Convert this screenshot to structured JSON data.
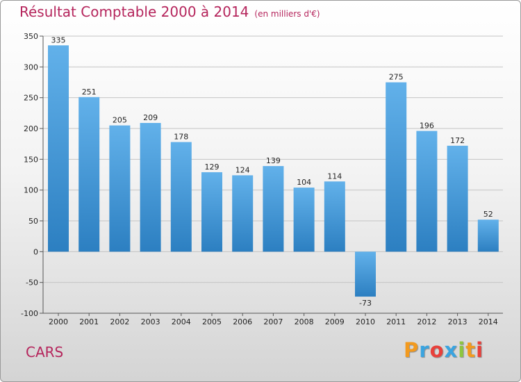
{
  "chart_data": {
    "type": "bar",
    "title": "Résultat Comptable 2000 à 2014",
    "subtitle": "(en milliers d'€)",
    "categories": [
      "2000",
      "2001",
      "2002",
      "2003",
      "2004",
      "2005",
      "2006",
      "2007",
      "2008",
      "2009",
      "2010",
      "2011",
      "2012",
      "2013",
      "2014"
    ],
    "values": [
      335,
      251,
      205,
      209,
      178,
      129,
      124,
      139,
      104,
      114,
      -73,
      275,
      196,
      172,
      52
    ],
    "ylim": [
      -100,
      350
    ],
    "yticks": [
      -100,
      -50,
      0,
      50,
      100,
      150,
      200,
      250,
      300,
      350
    ],
    "xlabel": "",
    "ylabel": "",
    "grid": true,
    "legend": "none"
  },
  "footer": {
    "commune": "CARS",
    "brand": [
      "P",
      "r",
      "o",
      "x",
      "i",
      "t",
      "i"
    ]
  },
  "colors": {
    "bar_light": "#62b1ea",
    "bar_dark": "#2c7fc1",
    "title": "#b5255c",
    "grid": "#c4c4c4",
    "brand": [
      "#f29a1f",
      "#3aa4e0",
      "#e8403b",
      "#3aa4e0",
      "#8dc63f",
      "#f29a1f",
      "#e8403b"
    ]
  }
}
